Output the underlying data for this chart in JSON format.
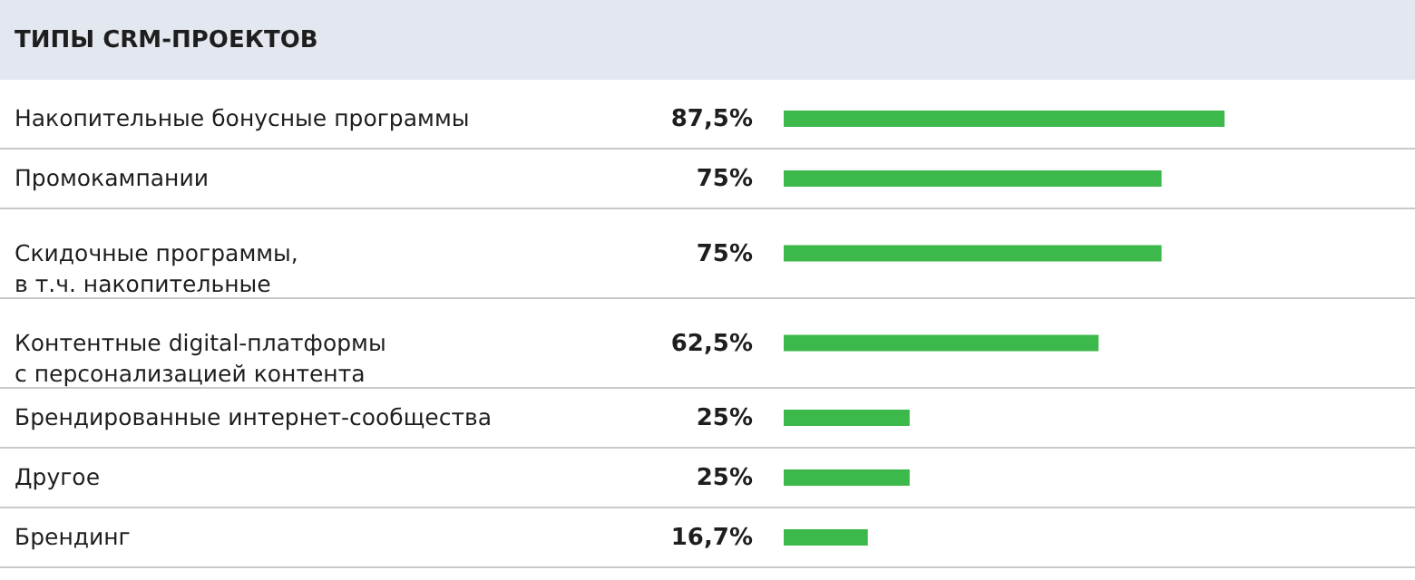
{
  "chart_data": {
    "type": "bar",
    "orientation": "horizontal",
    "title": "ТИПЫ CRM-ПРОЕКТОВ",
    "categories": [
      "Накопительные бонусные программы",
      "Промокампании",
      "Скидочные программы,\nв т.ч. накопительные",
      "Контентные digital-платформы\nс персонализацией контента",
      "Брендированные интернет-сообщества",
      "Другое",
      "Брендинг"
    ],
    "values": [
      87.5,
      75,
      75,
      62.5,
      25,
      25,
      16.7
    ],
    "value_labels": [
      "87,5%",
      "75%",
      "75%",
      "62,5%",
      "25%",
      "25%",
      "16,7%"
    ],
    "color": "#3db84a"
  }
}
